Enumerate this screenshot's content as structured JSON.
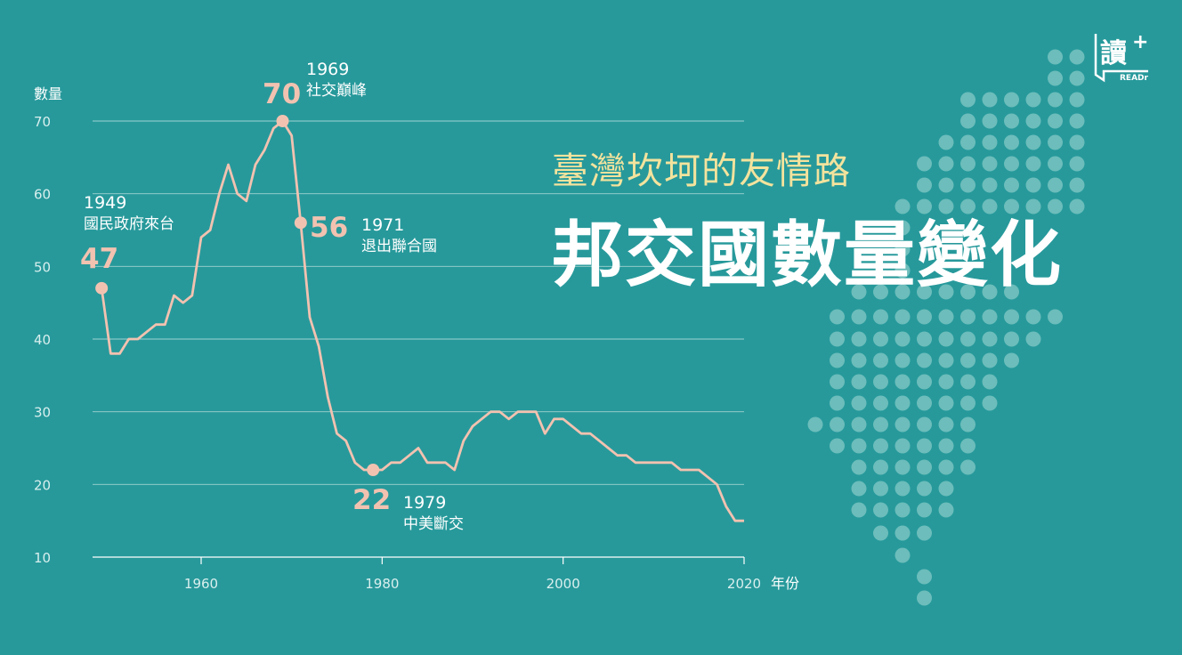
{
  "header": {
    "subtitle": "臺灣坎坷的友情路",
    "title": "邦交國數量變化"
  },
  "logo": {
    "glyph": "讀",
    "plus": "+",
    "brand": "READr",
    "icon": "readr-logo-icon"
  },
  "colors": {
    "background": "#27999b",
    "line": "#f2c2b0",
    "dots": "#6cbdbb",
    "subtitle": "#f3e39d",
    "text": "#ffffff",
    "grid": "#9fd3d0"
  },
  "chart_data": {
    "type": "line",
    "ylabel": "數量",
    "xlabel": "年份",
    "xlim": [
      1948,
      2020
    ],
    "ylim": [
      10,
      70
    ],
    "yticks": [
      10,
      20,
      30,
      40,
      50,
      60,
      70
    ],
    "xticks": [
      1960,
      1980,
      2000,
      2020
    ],
    "grid": true,
    "series": [
      {
        "x": [
          1949,
          1950,
          1951,
          1952,
          1953,
          1954,
          1955,
          1956,
          1957,
          1958,
          1959,
          1960,
          1961,
          1962,
          1963,
          1964,
          1965,
          1966,
          1967,
          1968,
          1969,
          1970,
          1971,
          1972,
          1973,
          1974,
          1975,
          1976,
          1977,
          1978,
          1979,
          1980,
          1981,
          1982,
          1983,
          1984,
          1985,
          1986,
          1987,
          1988,
          1989,
          1990,
          1991,
          1992,
          1993,
          1994,
          1995,
          1996,
          1997,
          1998,
          1999,
          2000,
          2001,
          2002,
          2003,
          2004,
          2005,
          2006,
          2007,
          2008,
          2009,
          2010,
          2011,
          2012,
          2013,
          2014,
          2015,
          2016,
          2017,
          2018,
          2019,
          2020
        ],
        "values": [
          47,
          38,
          38,
          40,
          40,
          41,
          42,
          42,
          46,
          45,
          46,
          54,
          55,
          60,
          64,
          60,
          59,
          64,
          66,
          69,
          70,
          68,
          56,
          43,
          39,
          32,
          27,
          26,
          23,
          22,
          22,
          22,
          23,
          23,
          24,
          25,
          23,
          23,
          23,
          22,
          26,
          28,
          29,
          30,
          30,
          29,
          30,
          30,
          30,
          27,
          29,
          29,
          28,
          27,
          27,
          26,
          25,
          24,
          24,
          23,
          23,
          23,
          23,
          23,
          22,
          22,
          22,
          21,
          20,
          17,
          15,
          15
        ]
      }
    ],
    "annotations": [
      {
        "year": 1949,
        "value": 47,
        "value_label": "47",
        "year_label": "1949",
        "note": "國民政府來台"
      },
      {
        "year": 1969,
        "value": 70,
        "value_label": "70",
        "year_label": "1969",
        "note": "社交巔峰"
      },
      {
        "year": 1971,
        "value": 56,
        "value_label": "56",
        "year_label": "1971",
        "note": "退出聯合國"
      },
      {
        "year": 1979,
        "value": 22,
        "value_label": "22",
        "year_label": "1979",
        "note": "中美斷交"
      }
    ]
  }
}
